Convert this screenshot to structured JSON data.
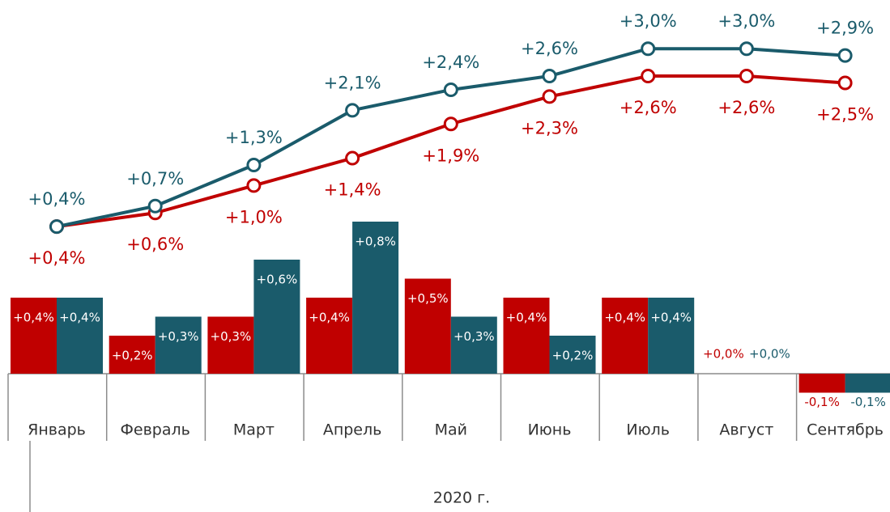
{
  "chart_data": {
    "type": "combo",
    "categories": [
      "Январь",
      "Февраль",
      "Март",
      "Апрель",
      "Май",
      "Июнь",
      "Июль",
      "Август",
      "Сентябрь"
    ],
    "group_label": "2020 г.",
    "series": [
      {
        "kind": "bar",
        "color": "#c00000",
        "values": [
          0.4,
          0.2,
          0.3,
          0.4,
          0.5,
          0.4,
          0.4,
          0.0,
          -0.1
        ],
        "value_labels": [
          "+0,4%",
          "+0,2%",
          "+0,3%",
          "+0,4%",
          "+0,5%",
          "+0,4%",
          "+0,4%",
          "+0,0%",
          "-0,1%"
        ]
      },
      {
        "kind": "bar",
        "color": "#1a5b6b",
        "values": [
          0.4,
          0.3,
          0.6,
          0.8,
          0.3,
          0.2,
          0.4,
          0.0,
          -0.1
        ],
        "value_labels": [
          "+0,4%",
          "+0,3%",
          "+0,6%",
          "+0,8%",
          "+0,3%",
          "+0,2%",
          "+0,4%",
          "+0,0%",
          "-0,1%"
        ]
      },
      {
        "kind": "line",
        "color": "#c00000",
        "values": [
          0.4,
          0.6,
          1.0,
          1.4,
          1.9,
          2.3,
          2.6,
          2.6,
          2.5
        ],
        "value_labels": [
          "+0,4%",
          "+0,6%",
          "+1,0%",
          "+1,4%",
          "+1,9%",
          "+2,3%",
          "+2,6%",
          "+2,6%",
          "+2,5%"
        ]
      },
      {
        "kind": "line",
        "color": "#1a5b6b",
        "values": [
          0.4,
          0.7,
          1.3,
          2.1,
          2.4,
          2.6,
          3.0,
          3.0,
          2.9
        ],
        "value_labels": [
          "+0,4%",
          "+0,7%",
          "+1,3%",
          "+2,1%",
          "+2,4%",
          "+2,6%",
          "+3,0%",
          "+3,0%",
          "+2,9%"
        ]
      }
    ]
  }
}
